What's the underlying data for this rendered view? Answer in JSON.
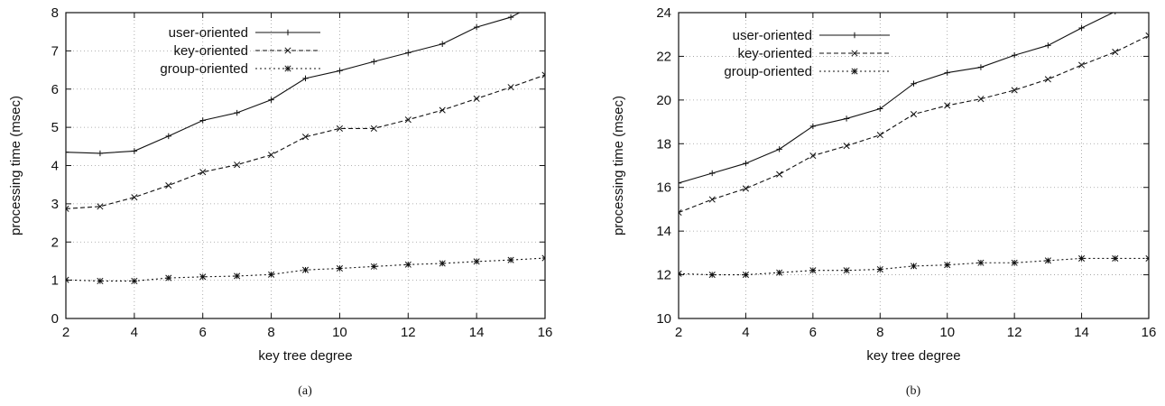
{
  "chart_data": [
    {
      "type": "line",
      "caption": "(a)",
      "xlabel": "key tree degree",
      "ylabel": "processing time (msec)",
      "xlim": [
        2,
        16
      ],
      "ylim": [
        0,
        8
      ],
      "xticks": [
        2,
        4,
        6,
        8,
        10,
        12,
        14,
        16
      ],
      "yticks": [
        0,
        1,
        2,
        3,
        4,
        5,
        6,
        7,
        8
      ],
      "grid": true,
      "legend_position": "top-left",
      "x": [
        2,
        3,
        4,
        5,
        6,
        7,
        8,
        9,
        10,
        11,
        12,
        13,
        14,
        15,
        16
      ],
      "series": [
        {
          "name": "user-oriented",
          "line": "solid",
          "marker": "plus",
          "values": [
            4.35,
            4.32,
            4.38,
            4.77,
            5.18,
            5.38,
            5.72,
            6.28,
            6.48,
            6.72,
            6.95,
            7.18,
            7.62,
            7.88,
            8.35
          ]
        },
        {
          "name": "key-oriented",
          "line": "dashed",
          "marker": "x",
          "values": [
            2.87,
            2.93,
            3.17,
            3.48,
            3.83,
            4.02,
            4.28,
            4.75,
            4.97,
            4.97,
            5.2,
            5.45,
            5.75,
            6.05,
            6.37
          ]
        },
        {
          "name": "group-oriented",
          "line": "dotted",
          "marker": "star",
          "values": [
            1.01,
            0.98,
            0.98,
            1.06,
            1.09,
            1.11,
            1.15,
            1.27,
            1.31,
            1.36,
            1.41,
            1.44,
            1.49,
            1.53,
            1.58
          ]
        }
      ]
    },
    {
      "type": "line",
      "caption": "(b)",
      "xlabel": "key tree degree",
      "ylabel": "processing time (msec)",
      "xlim": [
        2,
        16
      ],
      "ylim": [
        10,
        24
      ],
      "xticks": [
        2,
        4,
        6,
        8,
        10,
        12,
        14,
        16
      ],
      "yticks": [
        10,
        12,
        14,
        16,
        18,
        20,
        22,
        24
      ],
      "grid": true,
      "legend_position": "top-left",
      "x": [
        2,
        3,
        4,
        5,
        6,
        7,
        8,
        9,
        10,
        11,
        12,
        13,
        14,
        15,
        16
      ],
      "series": [
        {
          "name": "user-oriented",
          "line": "solid",
          "marker": "plus",
          "values": [
            16.2,
            16.65,
            17.1,
            17.75,
            18.8,
            19.15,
            19.6,
            20.75,
            21.25,
            21.5,
            22.05,
            22.5,
            23.3,
            24.05,
            24.6
          ]
        },
        {
          "name": "key-oriented",
          "line": "dashed",
          "marker": "x",
          "values": [
            14.85,
            15.45,
            15.95,
            16.6,
            17.45,
            17.9,
            18.4,
            19.35,
            19.75,
            20.05,
            20.45,
            20.95,
            21.6,
            22.2,
            22.95
          ]
        },
        {
          "name": "group-oriented",
          "line": "dotted",
          "marker": "star",
          "values": [
            12.05,
            12.0,
            12.0,
            12.1,
            12.2,
            12.2,
            12.25,
            12.4,
            12.45,
            12.55,
            12.55,
            12.65,
            12.75,
            12.75,
            12.75
          ]
        }
      ]
    }
  ]
}
